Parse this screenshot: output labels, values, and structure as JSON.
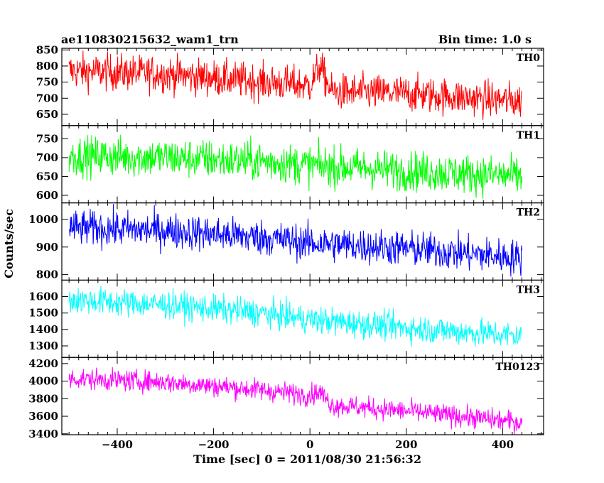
{
  "header": {
    "title": "ae110830215632_wam1_trn",
    "bin_time": "Bin time: 1.0 s"
  },
  "chart_data": {
    "type": "line",
    "ylabel": "Counts/sec",
    "xlabel": "Time [sec] 0 = 2011/08/30 21:56:32",
    "xlim": [
      -515,
      485
    ],
    "x_range": [
      -500,
      440
    ],
    "x_ticks": [
      -400,
      -200,
      0,
      200,
      400
    ],
    "panels": [
      {
        "name": "TH0",
        "color": "#ff0000",
        "ylim": [
          615,
          855
        ],
        "y_ticks": [
          650,
          700,
          750,
          800,
          850
        ],
        "trend": [
          [
            -500,
            785
          ],
          [
            -300,
            775
          ],
          [
            -100,
            750
          ],
          [
            0,
            740
          ],
          [
            20,
            800
          ],
          [
            45,
            720
          ],
          [
            200,
            715
          ],
          [
            440,
            690
          ]
        ],
        "noise": 28
      },
      {
        "name": "TH1",
        "color": "#00ff00",
        "ylim": [
          580,
          785
        ],
        "y_ticks": [
          600,
          650,
          700,
          750
        ],
        "trend": [
          [
            -500,
            705
          ],
          [
            -300,
            700
          ],
          [
            -100,
            690
          ],
          [
            0,
            680
          ],
          [
            200,
            665
          ],
          [
            440,
            650
          ]
        ],
        "noise": 26
      },
      {
        "name": "TH2",
        "color": "#0000ff",
        "ylim": [
          780,
          1060
        ],
        "y_ticks": [
          800,
          900,
          1000
        ],
        "trend": [
          [
            -500,
            970
          ],
          [
            -300,
            960
          ],
          [
            -100,
            935
          ],
          [
            0,
            915
          ],
          [
            200,
            895
          ],
          [
            440,
            860
          ]
        ],
        "noise": 32
      },
      {
        "name": "TH3",
        "color": "#00ffff",
        "ylim": [
          1230,
          1700
        ],
        "y_ticks": [
          1300,
          1400,
          1500,
          1600
        ],
        "trend": [
          [
            -500,
            1580
          ],
          [
            -300,
            1550
          ],
          [
            -100,
            1500
          ],
          [
            0,
            1460
          ],
          [
            200,
            1410
          ],
          [
            440,
            1360
          ]
        ],
        "noise": 42
      },
      {
        "name": "TH0123",
        "color": "#ff00ff",
        "ylim": [
          3390,
          4270
        ],
        "y_ticks": [
          3400,
          3600,
          3800,
          4000,
          4200
        ],
        "trend": [
          [
            -500,
            4030
          ],
          [
            -300,
            3990
          ],
          [
            -100,
            3900
          ],
          [
            0,
            3840
          ],
          [
            20,
            3880
          ],
          [
            45,
            3730
          ],
          [
            200,
            3660
          ],
          [
            440,
            3530
          ]
        ],
        "noise": 60
      }
    ]
  }
}
